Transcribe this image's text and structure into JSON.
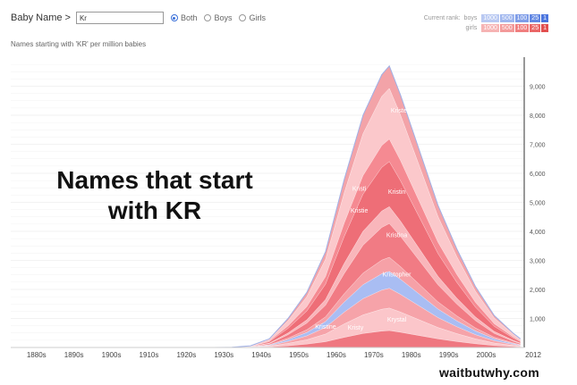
{
  "header": {
    "label": "Baby Name >",
    "input_value": "Kr",
    "radios": [
      {
        "label": "Both",
        "selected": true
      },
      {
        "label": "Boys",
        "selected": false
      },
      {
        "label": "Girls",
        "selected": false
      }
    ]
  },
  "subtitle": "Names starting with 'KR' per million babies",
  "rank_legend": {
    "title": "Current rank:",
    "boys_label": "boys",
    "girls_label": "girls",
    "cells": [
      "1000",
      "500",
      "100",
      "25",
      "1"
    ],
    "boys_colors": [
      "#b9c9f2",
      "#9fb6ee",
      "#7f9de8",
      "#6288e3",
      "#4a74de"
    ],
    "girls_colors": [
      "#f6b4b4",
      "#f39a9a",
      "#f07f7f",
      "#ea6767",
      "#e24f4f"
    ]
  },
  "overlay_title_lines": [
    "Names that start",
    "with KR"
  ],
  "watermark": "waitbutwhy.com",
  "chart_data": {
    "type": "area",
    "x": [
      1880,
      1890,
      1900,
      1910,
      1920,
      1930,
      1935,
      1940,
      1945,
      1950,
      1955,
      1960,
      1965,
      1970,
      1975,
      1977,
      1980,
      1985,
      1990,
      1995,
      2000,
      2005,
      2010,
      2012
    ],
    "total": [
      0,
      0,
      0,
      0,
      0,
      0,
      5,
      60,
      300,
      1000,
      1900,
      3300,
      5800,
      8000,
      9400,
      9700,
      8700,
      6800,
      4900,
      3400,
      2100,
      1100,
      500,
      300
    ],
    "names": [
      {
        "label": "Kristen",
        "x": 1980,
        "y": 8100
      },
      {
        "label": "Kristi",
        "x": 1969,
        "y": 5400
      },
      {
        "label": "Kristin",
        "x": 1979,
        "y": 5300
      },
      {
        "label": "Kristie",
        "x": 1969,
        "y": 4650
      },
      {
        "label": "Kristina",
        "x": 1979,
        "y": 3800
      },
      {
        "label": "Kristopher",
        "x": 1979,
        "y": 2450
      },
      {
        "label": "Kristine",
        "x": 1960,
        "y": 650
      },
      {
        "label": "Kristy",
        "x": 1968,
        "y": 620
      },
      {
        "label": "Krystal",
        "x": 1979,
        "y": 900
      }
    ],
    "xtick_labels": [
      "1880s",
      "1890s",
      "1900s",
      "1910s",
      "1920s",
      "1930s",
      "1940s",
      "1950s",
      "1960s",
      "1970s",
      "1980s",
      "1990s",
      "2000s",
      "2012"
    ],
    "yticks": [
      "1,000",
      "2,000",
      "3,000",
      "4,000",
      "5,000",
      "6,000",
      "7,000",
      "8,000",
      "9,000"
    ],
    "xlim": [
      1876,
      2013
    ],
    "ylim": [
      0,
      10000
    ],
    "grid": true
  }
}
